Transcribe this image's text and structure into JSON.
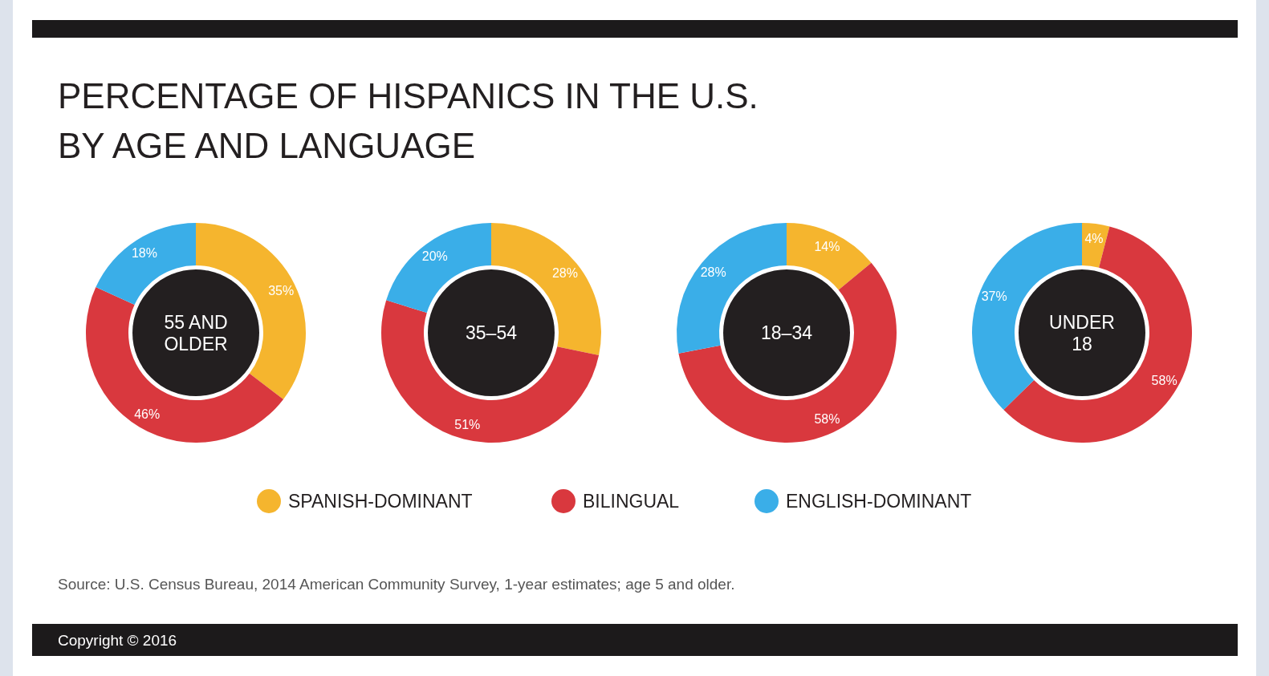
{
  "chart_data": [
    {
      "type": "donut",
      "title": "PERCENTAGE OF HISPANICS IN THE U.S. BY AGE AND LANGUAGE",
      "subtitle": "55 AND OLDER",
      "categories": [
        "SPANISH-DOMINANT",
        "BILINGUAL",
        "ENGLISH-DOMINANT"
      ],
      "values": [
        35,
        46,
        18
      ],
      "value_labels": [
        "35%",
        "46%",
        "18%"
      ],
      "colors": [
        "#f5b52e",
        "#d9383e",
        "#3aaee8"
      ],
      "legend": "bottom",
      "annotations": [
        "Source: U.S. Census Bureau, 2014 American Community Survey, 1-year estimates; age 5 and older.",
        "Copyright © 2016"
      ]
    },
    {
      "type": "donut",
      "subtitle": "35–54",
      "values": [
        28,
        51,
        20
      ],
      "value_labels": [
        "28%",
        "51%",
        "20%"
      ],
      "colors": [
        "#f5b52e",
        "#d9383e",
        "#3aaee8"
      ]
    },
    {
      "type": "donut",
      "subtitle": "18–34",
      "values": [
        14,
        58,
        28
      ],
      "value_labels": [
        "14%",
        "58%",
        "28%"
      ],
      "colors": [
        "#f5b52e",
        "#d9383e",
        "#3aaee8"
      ]
    },
    {
      "type": "donut",
      "subtitle": "UNDER 18",
      "values": [
        4,
        58,
        37
      ],
      "value_labels": [
        "4%",
        "58%",
        "37%"
      ],
      "colors": [
        "#f5b52e",
        "#d9383e",
        "#3aaee8"
      ]
    }
  ]
}
